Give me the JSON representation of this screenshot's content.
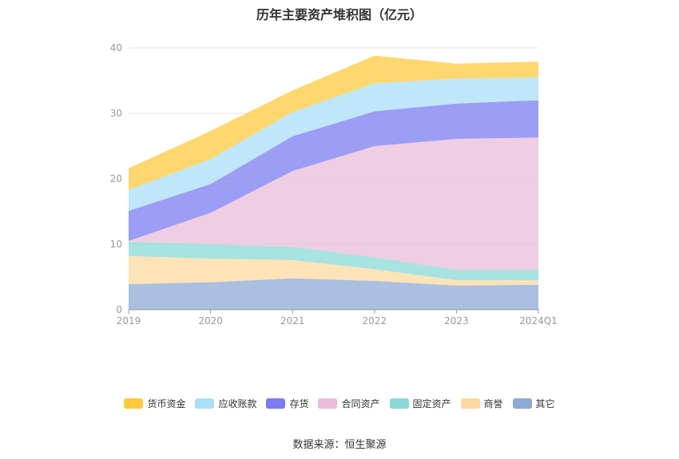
{
  "title": "历年主要资产堆积图（亿元）",
  "source": "数据来源：恒生聚源",
  "chart_data": {
    "type": "area",
    "stacked": true,
    "categories": [
      "2019",
      "2020",
      "2021",
      "2022",
      "2023",
      "2024Q1"
    ],
    "ylim": [
      0,
      40
    ],
    "yticks": [
      0,
      10,
      20,
      30,
      40
    ],
    "grid": true,
    "legend_position": "bottom",
    "series": [
      {
        "name": "其它",
        "color": "#8fa9d6",
        "values": [
          3.9,
          4.2,
          4.8,
          4.4,
          3.7,
          3.8
        ]
      },
      {
        "name": "商誉",
        "color": "#fcd9a0",
        "values": [
          4.3,
          3.6,
          2.8,
          1.8,
          0.8,
          0.7
        ]
      },
      {
        "name": "固定资产",
        "color": "#8ad9d6",
        "values": [
          2.2,
          2.2,
          2.0,
          1.8,
          1.6,
          1.6
        ]
      },
      {
        "name": "合同资产",
        "color": "#e9bcda",
        "values": [
          0.1,
          4.8,
          11.6,
          17.0,
          20.0,
          20.2
        ]
      },
      {
        "name": "存货",
        "color": "#7b7cf0",
        "values": [
          4.6,
          4.4,
          5.3,
          5.3,
          5.4,
          5.7
        ]
      },
      {
        "name": "应收账款",
        "color": "#a9dff7",
        "values": [
          3.2,
          3.8,
          3.7,
          4.3,
          3.8,
          3.5
        ]
      },
      {
        "name": "货币资金",
        "color": "#fec93f",
        "values": [
          3.3,
          4.3,
          3.3,
          4.2,
          2.3,
          2.4
        ]
      }
    ]
  }
}
